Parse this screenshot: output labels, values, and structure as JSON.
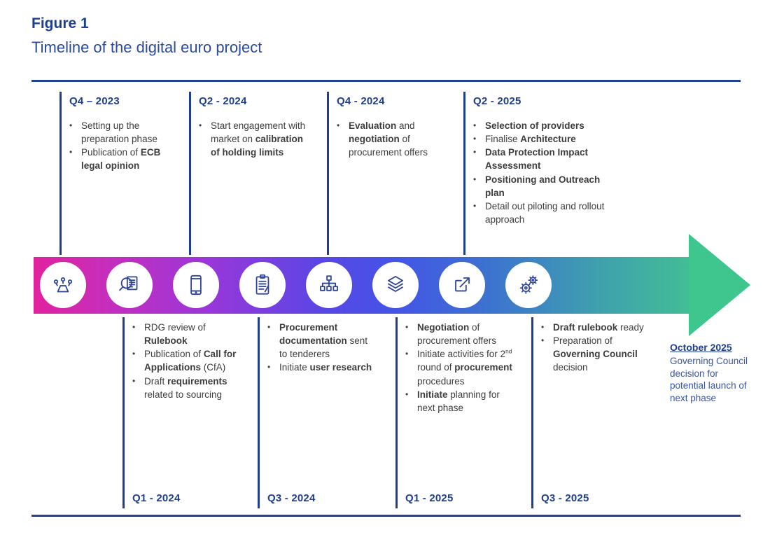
{
  "header": {
    "figure_label": "Figure 1",
    "title": "Timeline of the digital euro project"
  },
  "colors": {
    "navy_line": "#1F3E8F",
    "body_text": "#3D3D3D",
    "milestone_blue": "#3956A5",
    "icon_stroke": "#2E4399",
    "gradient": [
      "#E0219E",
      "#C92DB9",
      "#9C36D9",
      "#5946E5",
      "#4454E7",
      "#3C74CE",
      "#3FA0AE",
      "#43BD96"
    ],
    "arrowhead": "#3FC68E"
  },
  "top_columns": [
    {
      "quarter": "Q4 – 2023",
      "bullets": [
        [
          {
            "t": "Setting up the preparation phase"
          }
        ],
        [
          {
            "t": "Publication of "
          },
          {
            "t": "ECB legal opinion",
            "b": true
          }
        ]
      ]
    },
    {
      "quarter": "Q2 - 2024",
      "bullets": [
        [
          {
            "t": "Start engagement with market on "
          },
          {
            "t": "calibration of holding limits",
            "b": true
          }
        ]
      ]
    },
    {
      "quarter": "Q4 - 2024",
      "bullets": [
        [
          {
            "t": "Evaluation",
            "b": true
          },
          {
            "t": " and "
          },
          {
            "t": "negotiation",
            "b": true
          },
          {
            "t": " of procurement offers"
          }
        ]
      ]
    },
    {
      "quarter": "Q2 - 2025",
      "bullets": [
        [
          {
            "t": "Selection of providers",
            "b": true
          }
        ],
        [
          {
            "t": "Finalise "
          },
          {
            "t": "Architecture",
            "b": true
          }
        ],
        [
          {
            "t": "Data Protection Impact Assessment",
            "b": true
          }
        ],
        [
          {
            "t": "Positioning and Outreach plan",
            "b": true
          }
        ],
        [
          {
            "t": "Detail out piloting and rollout approach"
          }
        ]
      ]
    }
  ],
  "bottom_columns": [
    {
      "quarter": "Q1 - 2024",
      "bullets": [
        [
          {
            "t": "RDG review of "
          },
          {
            "t": "Rulebook",
            "b": true
          }
        ],
        [
          {
            "t": "Publication of "
          },
          {
            "t": "Call for Applications",
            "b": true
          },
          {
            "t": " (CfA)"
          }
        ],
        [
          {
            "t": "Draft "
          },
          {
            "t": "requirements",
            "b": true
          },
          {
            "t": " related to sourcing"
          }
        ]
      ]
    },
    {
      "quarter": "Q3 - 2024",
      "bullets": [
        [
          {
            "t": "Procurement documentation",
            "b": true
          },
          {
            "t": " sent to tenderers"
          }
        ],
        [
          {
            "t": "Initiate "
          },
          {
            "t": "user research",
            "b": true
          }
        ]
      ]
    },
    {
      "quarter": "Q1 - 2025",
      "bullets": [
        [
          {
            "t": "Negotiation",
            "b": true
          },
          {
            "t": " of procurement offers"
          }
        ],
        [
          {
            "t": "Initiate activities for 2"
          },
          {
            "t": "nd",
            "sup": true
          },
          {
            "t": " round of "
          },
          {
            "t": "procurement",
            "b": true
          },
          {
            "t": " procedures"
          }
        ],
        [
          {
            "t": "Initiate",
            "b": true
          },
          {
            "t": " planning for next phase"
          }
        ]
      ]
    },
    {
      "quarter": "Q3 - 2025",
      "bullets": [
        [
          {
            "t": "Draft rulebook",
            "b": true
          },
          {
            "t": " ready"
          }
        ],
        [
          {
            "t": "Preparation of "
          },
          {
            "t": "Governing Council",
            "b": true
          },
          {
            "t": " decision"
          }
        ]
      ]
    }
  ],
  "milestone": {
    "date": "October 2025",
    "text": "Governing Council decision for potential launch of next phase"
  },
  "icons": [
    "meeting-icon",
    "document-review-icon",
    "smartphone-icon",
    "clipboard-icon",
    "org-chart-icon",
    "layers-icon",
    "export-icon",
    "gears-icon"
  ]
}
